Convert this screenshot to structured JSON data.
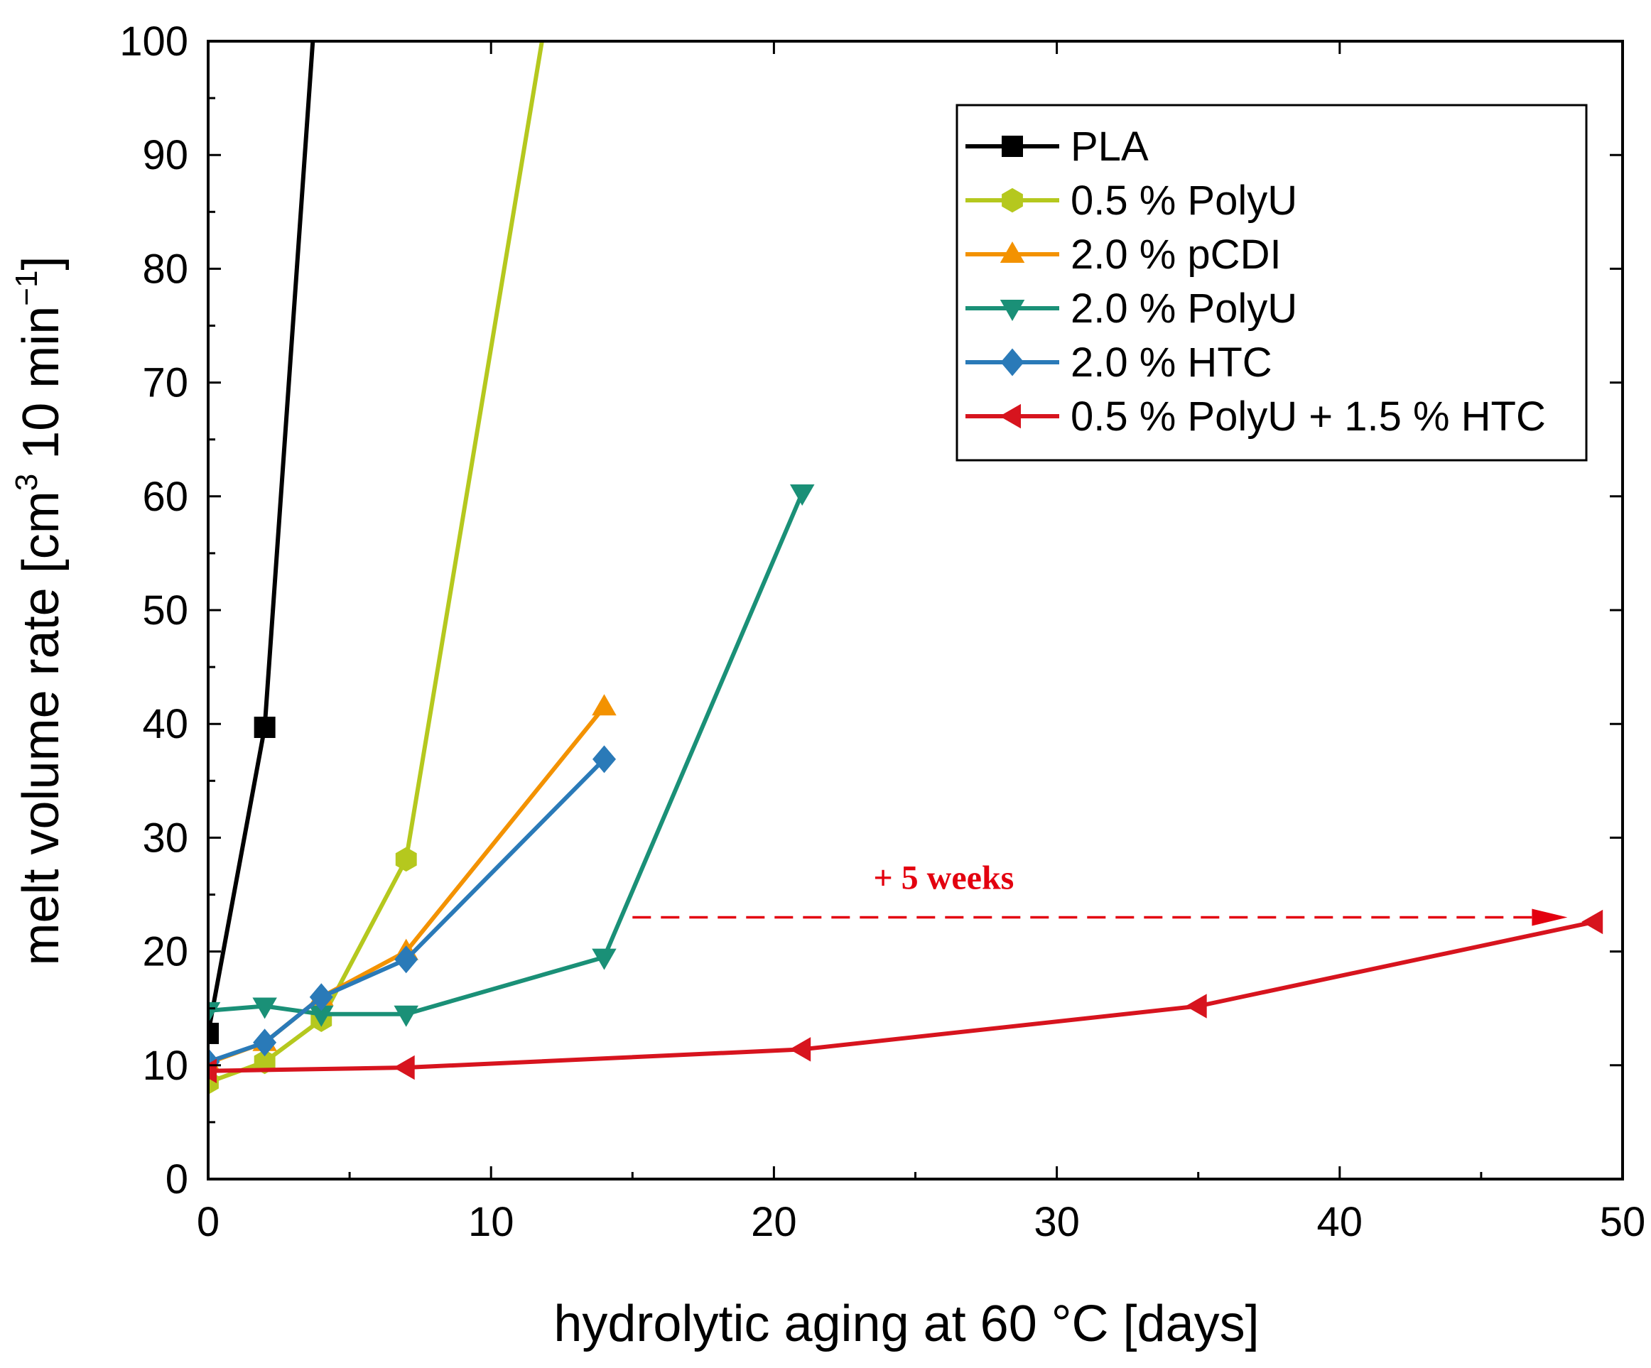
{
  "chart_data": {
    "type": "line",
    "title": "",
    "xlabel": "hydrolytic aging at 60 °C [days]",
    "ylabel_main": "melt volume rate [cm",
    "ylabel_sup1": "3",
    "ylabel_mid": " 10 min",
    "ylabel_sup2": "−1",
    "ylabel_end": "]",
    "xlim": [
      0,
      50
    ],
    "ylim": [
      0,
      100
    ],
    "xticks": [
      0,
      10,
      20,
      30,
      40,
      50
    ],
    "yticks": [
      0,
      10,
      20,
      30,
      40,
      50,
      60,
      70,
      80,
      90,
      100
    ],
    "xtick_labels": [
      "0",
      "10",
      "20",
      "30",
      "40",
      "50"
    ],
    "ytick_labels": [
      "0",
      "10",
      "20",
      "30",
      "40",
      "50",
      "60",
      "70",
      "80",
      "90",
      "100"
    ],
    "legend_position": "top-right",
    "series": [
      {
        "name": "PLA",
        "color": "#000000",
        "marker": "square",
        "x": [
          0,
          2,
          3.7
        ],
        "y": [
          12.8,
          39.7,
          100
        ],
        "marker_count": 2
      },
      {
        "name": "0.5 % PolyU",
        "color": "#b5c81e",
        "marker": "hexagon",
        "x": [
          0,
          2,
          4,
          7,
          11.8
        ],
        "y": [
          8.5,
          10.3,
          14.0,
          28.1,
          100
        ],
        "marker_count": 4
      },
      {
        "name": "2.0 % pCDI",
        "color": "#f39200",
        "marker": "triangle-up",
        "x": [
          0,
          2,
          4,
          7,
          14
        ],
        "y": [
          10.2,
          12.0,
          16.0,
          20.0,
          41.5
        ],
        "marker_count": 5
      },
      {
        "name": "2.0 % PolyU",
        "color": "#1a9077",
        "marker": "triangle-down",
        "x": [
          0,
          2,
          4,
          7,
          14,
          21
        ],
        "y": [
          14.8,
          15.2,
          14.5,
          14.5,
          19.5,
          60.3
        ],
        "marker_count": 6
      },
      {
        "name": "2.0 % HTC",
        "color": "#2a7ab8",
        "marker": "diamond",
        "x": [
          0,
          2,
          4,
          7,
          14
        ],
        "y": [
          10.3,
          12.0,
          16.0,
          19.3,
          36.9
        ],
        "marker_count": 5
      },
      {
        "name": "0.5 % PolyU + 1.5 % HTC",
        "color": "#d7141e",
        "marker": "triangle-left",
        "x": [
          0,
          7,
          21,
          35,
          49
        ],
        "y": [
          9.5,
          9.8,
          11.4,
          15.2,
          22.6
        ],
        "marker_count": 5
      }
    ],
    "annotations": [
      {
        "text": "+ 5 weeks",
        "color": "#e3000f",
        "arrow_from": [
          15,
          23
        ],
        "arrow_to": [
          47.8,
          23
        ],
        "label_at": [
          26,
          25.5
        ]
      }
    ]
  }
}
